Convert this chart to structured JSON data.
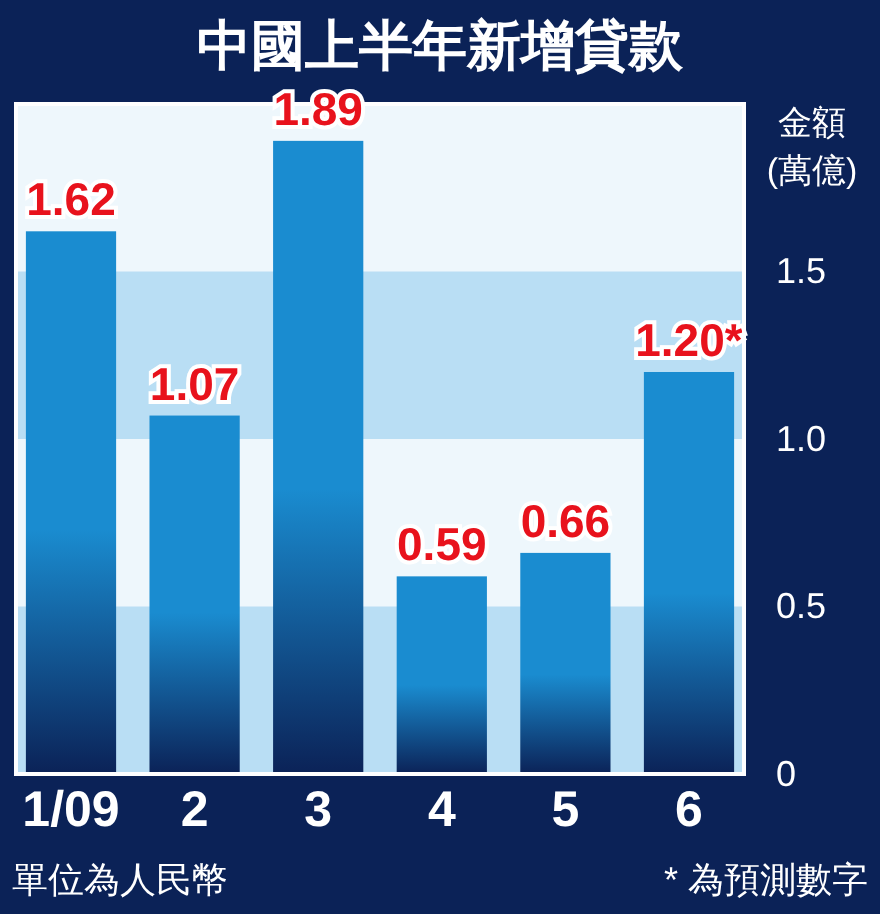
{
  "chart_data": {
    "type": "bar",
    "title": "中國上半年新增貸款",
    "ylabel": "金額\n(萬億)",
    "categories": [
      "1/09",
      "2",
      "3",
      "4",
      "5",
      "6"
    ],
    "values": [
      1.62,
      1.07,
      1.89,
      0.59,
      0.66,
      1.2
    ],
    "value_labels": [
      "1.62",
      "1.07",
      "1.89",
      "0.59",
      "0.66",
      "1.20*"
    ],
    "color": "#1a8cd0",
    "ylim": [
      0,
      2.0
    ],
    "yticks": [
      0,
      0.5,
      {
        "value": 1.0,
        "label": "1.0"
      },
      1.5
    ],
    "bands": [
      {
        "axis": "y",
        "from": 1.0,
        "to": 1.5,
        "color": "#b9def4"
      },
      {
        "axis": "y",
        "from": 0,
        "to": 0.5,
        "color": "#b9def4"
      }
    ],
    "grid": false,
    "annotations": [
      "單位為人民幣",
      "* 為預測數字"
    ]
  }
}
